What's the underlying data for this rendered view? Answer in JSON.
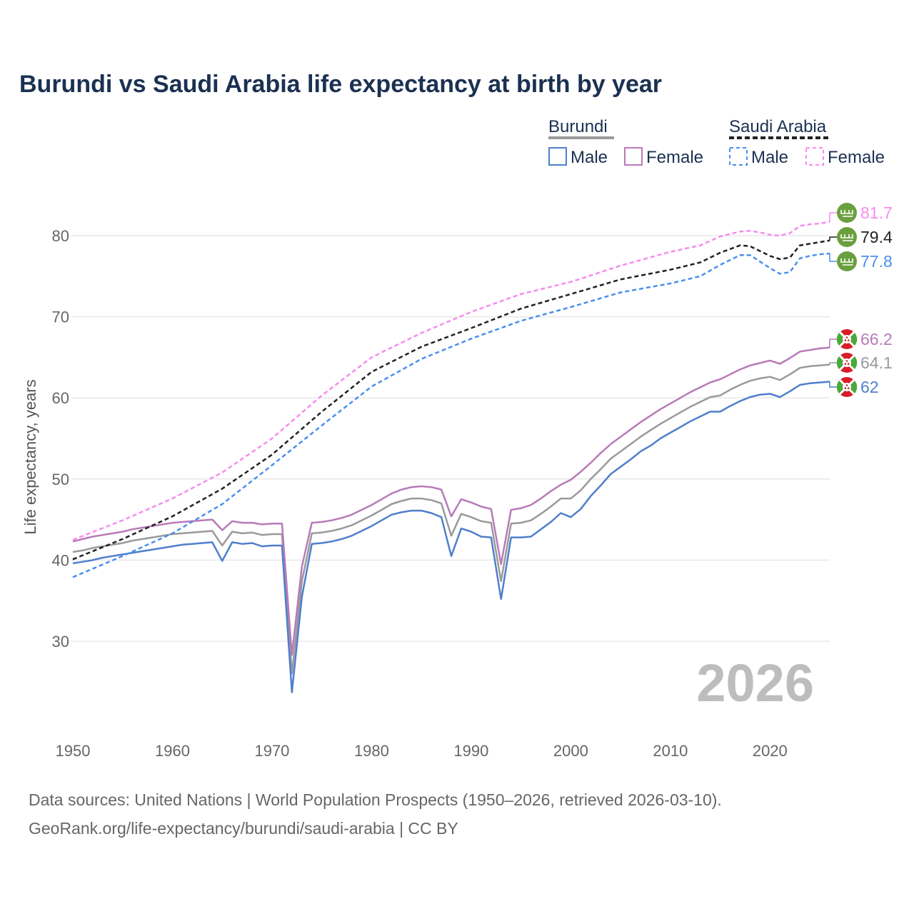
{
  "chart_data": {
    "type": "line",
    "title": "Burundi vs Saudi Arabia life expectancy at birth by year",
    "xlabel": "",
    "ylabel": "Life expectancy, years",
    "xlim": [
      1950,
      2026
    ],
    "ylim": [
      20,
      88
    ],
    "x_ticks": [
      1950,
      1960,
      1970,
      1980,
      1990,
      2000,
      2010,
      2020
    ],
    "y_ticks": [
      30,
      40,
      50,
      60,
      70,
      80
    ],
    "grid": "horizontal",
    "legend_position": "top-right",
    "legend": {
      "groups": [
        {
          "name": "Burundi",
          "items": [
            "Male",
            "Female"
          ]
        },
        {
          "name": "Saudi Arabia",
          "items": [
            "Male",
            "Female"
          ]
        }
      ]
    },
    "year_watermark": "2026",
    "series": [
      {
        "name": "Burundi Total",
        "country": "Burundi",
        "sex": "Total",
        "color": "#9a9a9a",
        "dashed": false,
        "label": "64.1",
        "x_start": 1950,
        "values": [
          41.0,
          41.2,
          41.5,
          41.7,
          41.9,
          42.1,
          42.4,
          42.6,
          42.8,
          43.0,
          43.2,
          43.3,
          43.4,
          43.5,
          43.6,
          41.8,
          43.5,
          43.3,
          43.4,
          43.1,
          43.2,
          43.2,
          26.0,
          37.4,
          43.3,
          43.4,
          43.6,
          43.9,
          44.3,
          44.9,
          45.5,
          46.2,
          46.9,
          47.3,
          47.6,
          47.6,
          47.4,
          47.0,
          43.0,
          45.7,
          45.3,
          44.8,
          44.6,
          37.4,
          44.5,
          44.6,
          44.9,
          45.7,
          46.6,
          47.6,
          47.6,
          48.6,
          50.0,
          51.2,
          52.5,
          53.4,
          54.3,
          55.2,
          56.0,
          56.8,
          57.5,
          58.2,
          58.9,
          59.5,
          60.1,
          60.3,
          61.0,
          61.6,
          62.1,
          62.4,
          62.6,
          62.2,
          62.9,
          63.7,
          63.9,
          64.0,
          64.1
        ]
      },
      {
        "name": "Burundi Male",
        "country": "Burundi",
        "sex": "Male",
        "color": "#4f7fcc",
        "dashed": false,
        "label": "62",
        "x_start": 1950,
        "values": [
          39.6,
          39.8,
          40.0,
          40.3,
          40.5,
          40.7,
          40.9,
          41.1,
          41.3,
          41.5,
          41.7,
          41.9,
          42.0,
          42.1,
          42.2,
          39.9,
          42.2,
          42.0,
          42.1,
          41.7,
          41.8,
          41.8,
          23.7,
          35.5,
          42.0,
          42.1,
          42.3,
          42.6,
          43.0,
          43.6,
          44.2,
          44.9,
          45.6,
          45.9,
          46.1,
          46.1,
          45.8,
          45.3,
          40.5,
          43.9,
          43.5,
          42.9,
          42.8,
          35.2,
          42.8,
          42.8,
          42.9,
          43.8,
          44.7,
          45.8,
          45.3,
          46.3,
          47.9,
          49.2,
          50.6,
          51.5,
          52.4,
          53.4,
          54.1,
          55.0,
          55.7,
          56.4,
          57.1,
          57.7,
          58.3,
          58.3,
          59.0,
          59.6,
          60.1,
          60.4,
          60.5,
          60.1,
          60.8,
          61.6,
          61.8,
          61.9,
          62.0
        ]
      },
      {
        "name": "Burundi Female",
        "country": "Burundi",
        "sex": "Female",
        "color": "#b87ab8",
        "dashed": false,
        "label": "66.2",
        "x_start": 1950,
        "values": [
          42.3,
          42.6,
          42.9,
          43.1,
          43.3,
          43.5,
          43.8,
          44.0,
          44.2,
          44.4,
          44.6,
          44.7,
          44.8,
          44.9,
          45.0,
          43.7,
          44.8,
          44.6,
          44.6,
          44.4,
          44.5,
          44.5,
          28.3,
          39.2,
          44.6,
          44.7,
          44.9,
          45.2,
          45.6,
          46.2,
          46.8,
          47.5,
          48.2,
          48.7,
          49.0,
          49.1,
          49.0,
          48.7,
          45.4,
          47.5,
          47.1,
          46.6,
          46.3,
          39.5,
          46.2,
          46.4,
          46.8,
          47.6,
          48.5,
          49.3,
          49.9,
          50.9,
          52.0,
          53.2,
          54.3,
          55.2,
          56.1,
          57.0,
          57.8,
          58.6,
          59.3,
          60.0,
          60.7,
          61.3,
          61.9,
          62.3,
          62.9,
          63.5,
          64.0,
          64.3,
          64.6,
          64.2,
          64.9,
          65.7,
          65.9,
          66.1,
          66.2
        ]
      },
      {
        "name": "Saudi Arabia Total",
        "country": "Saudi Arabia",
        "sex": "Total",
        "color": "#222222",
        "dashed": true,
        "label": "79.4",
        "x": [
          1950,
          1955,
          1960,
          1965,
          1970,
          1975,
          1980,
          1985,
          1990,
          1995,
          2000,
          2005,
          2010,
          2013,
          2015,
          2017,
          2018,
          2019,
          2020,
          2021,
          2022,
          2023,
          2024,
          2025,
          2026
        ],
        "values": [
          40.1,
          42.6,
          45.4,
          48.8,
          53.0,
          58.3,
          63.2,
          66.3,
          68.6,
          71.0,
          72.8,
          74.6,
          75.8,
          76.7,
          77.9,
          78.8,
          78.7,
          78.1,
          77.5,
          77.1,
          77.3,
          78.8,
          79.0,
          79.2,
          79.4
        ]
      },
      {
        "name": "Saudi Arabia Male",
        "country": "Saudi Arabia",
        "sex": "Male",
        "color": "#4a8ff0",
        "dashed": true,
        "label": "77.8",
        "x": [
          1950,
          1955,
          1960,
          1965,
          1970,
          1975,
          1980,
          1985,
          1990,
          1995,
          2000,
          2005,
          2010,
          2013,
          2015,
          2017,
          2018,
          2019,
          2020,
          2021,
          2022,
          2023,
          2024,
          2025,
          2026
        ],
        "values": [
          37.9,
          40.5,
          43.3,
          46.9,
          51.7,
          56.6,
          61.4,
          64.8,
          67.3,
          69.5,
          71.2,
          73.0,
          74.1,
          75.0,
          76.4,
          77.6,
          77.6,
          76.8,
          76.0,
          75.3,
          75.5,
          77.2,
          77.5,
          77.7,
          77.8
        ]
      },
      {
        "name": "Saudi Arabia Female",
        "country": "Saudi Arabia",
        "sex": "Female",
        "color": "#f78af0",
        "dashed": true,
        "label": "81.7",
        "x": [
          1950,
          1955,
          1960,
          1965,
          1970,
          1975,
          1980,
          1985,
          1990,
          1995,
          2000,
          2005,
          2010,
          2013,
          2015,
          2017,
          2018,
          2019,
          2020,
          2021,
          2022,
          2023,
          2024,
          2025,
          2026
        ],
        "values": [
          42.5,
          44.9,
          47.6,
          50.8,
          55.0,
          60.3,
          65.0,
          68.0,
          70.6,
          72.8,
          74.3,
          76.3,
          78.0,
          78.8,
          79.9,
          80.5,
          80.6,
          80.4,
          80.1,
          80.0,
          80.3,
          81.2,
          81.4,
          81.5,
          81.7
        ]
      }
    ]
  },
  "footer": {
    "line1": "Data sources: United Nations | World Population Prospects (1950–2026, retrieved 2026-03-10).",
    "line2": "GeoRank.org/life-expectancy/burundi/saudi-arabia | CC BY"
  },
  "flags": {
    "saudi_arabia": "saudi-arabia-flag-icon",
    "burundi": "burundi-flag-icon"
  }
}
